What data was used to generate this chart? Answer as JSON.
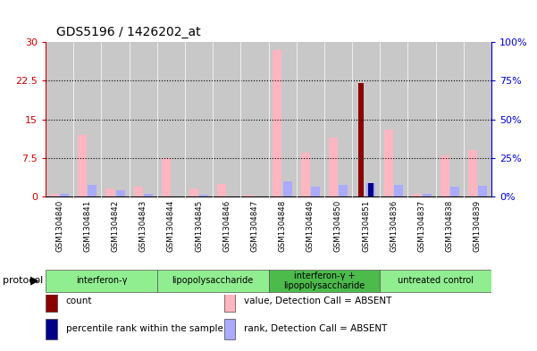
{
  "title": "GDS5196 / 1426202_at",
  "samples": [
    "GSM1304840",
    "GSM1304841",
    "GSM1304842",
    "GSM1304843",
    "GSM1304844",
    "GSM1304845",
    "GSM1304846",
    "GSM1304847",
    "GSM1304848",
    "GSM1304849",
    "GSM1304850",
    "GSM1304851",
    "GSM1304836",
    "GSM1304837",
    "GSM1304838",
    "GSM1304839"
  ],
  "pink_values": [
    0.5,
    12.0,
    1.5,
    2.0,
    7.5,
    1.5,
    2.5,
    0.4,
    28.5,
    8.5,
    11.5,
    0.3,
    13.0,
    0.5,
    8.0,
    9.0
  ],
  "blue_values": [
    2.0,
    7.5,
    4.0,
    1.5,
    0.0,
    1.2,
    0.0,
    0.2,
    10.0,
    6.5,
    7.5,
    8.5,
    7.5,
    1.5,
    6.5,
    7.0
  ],
  "red_values": [
    0.0,
    0.0,
    0.0,
    0.0,
    0.0,
    0.0,
    0.0,
    0.0,
    0.0,
    0.0,
    0.0,
    22.0,
    0.0,
    0.0,
    0.0,
    0.0
  ],
  "darkblue_values": [
    0.0,
    0.0,
    0.0,
    0.0,
    0.0,
    0.0,
    0.0,
    0.0,
    0.0,
    0.0,
    0.0,
    8.5,
    0.0,
    0.0,
    0.0,
    0.0
  ],
  "groups": [
    {
      "label": "interferon-γ",
      "start": 0,
      "end": 3,
      "color": "#90EE90"
    },
    {
      "label": "lipopolysaccharide",
      "start": 4,
      "end": 7,
      "color": "#90EE90"
    },
    {
      "label": "interferon-γ +\nlipopolysaccharide",
      "start": 8,
      "end": 11,
      "color": "#4CBB4C"
    },
    {
      "label": "untreated control",
      "start": 12,
      "end": 15,
      "color": "#90EE90"
    }
  ],
  "ylim_left": [
    0,
    30
  ],
  "ylim_right": [
    0,
    100
  ],
  "yticks_left": [
    0,
    7.5,
    15,
    22.5,
    30
  ],
  "yticks_left_labels": [
    "0",
    "7.5",
    "15",
    "22.5",
    "30"
  ],
  "yticks_right": [
    0,
    25,
    50,
    75,
    100
  ],
  "yticks_right_labels": [
    "0%",
    "25%",
    "50%",
    "75%",
    "100%"
  ],
  "bar_width": 0.32,
  "pink_color": "#FFB6C1",
  "blue_color": "#AAAAFF",
  "red_color": "#8B0000",
  "darkblue_color": "#00008B",
  "left_axis_color": "#CC0000",
  "right_axis_color": "#0000CC",
  "bg_color": "#C8C8C8",
  "legend_items": [
    {
      "color": "#8B0000",
      "label": "count"
    },
    {
      "color": "#00008B",
      "label": "percentile rank within the sample"
    },
    {
      "color": "#FFB6C1",
      "label": "value, Detection Call = ABSENT"
    },
    {
      "color": "#AAAAFF",
      "label": "rank, Detection Call = ABSENT"
    }
  ]
}
